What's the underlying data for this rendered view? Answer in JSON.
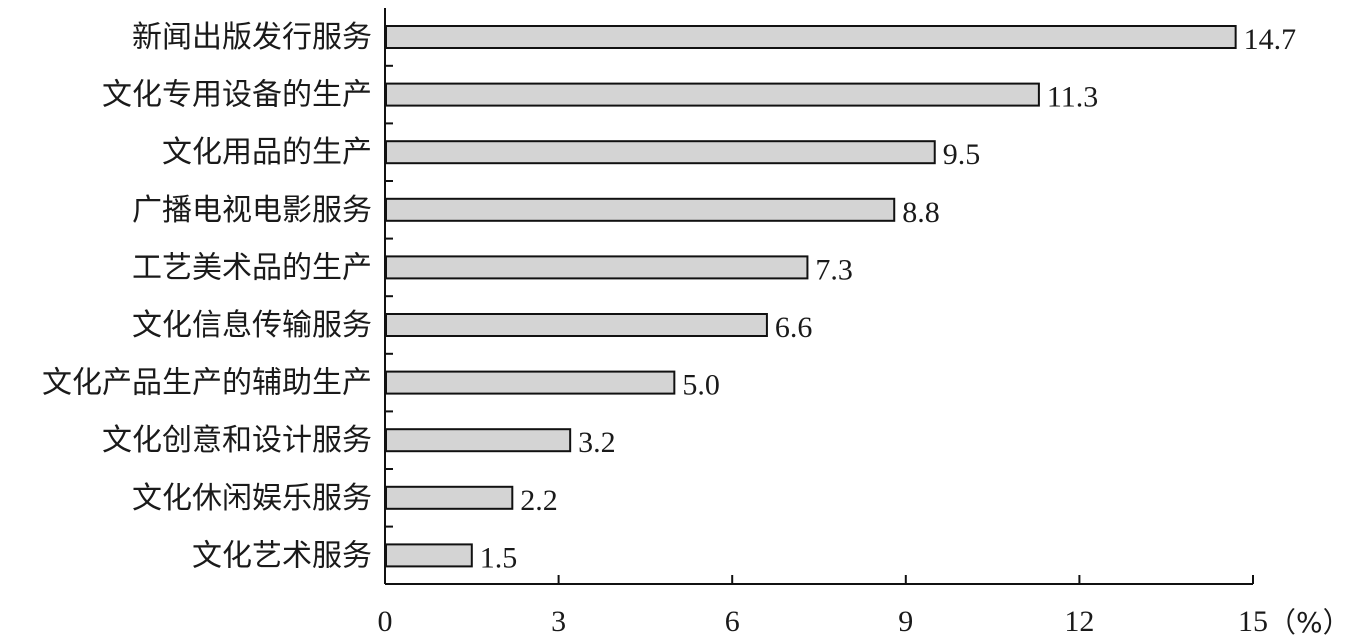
{
  "chart_data": {
    "type": "bar",
    "orientation": "horizontal",
    "categories": [
      "新闻出版发行服务",
      "文化专用设备的生产",
      "文化用品的生产",
      "广播电视电影服务",
      "工艺美术品的生产",
      "文化信息传输服务",
      "文化产品生产的辅助生产",
      "文化创意和设计服务",
      "文化休闲娱乐服务",
      "文化艺术服务"
    ],
    "values": [
      14.7,
      11.3,
      9.5,
      8.8,
      7.3,
      6.6,
      5.0,
      3.2,
      2.2,
      1.5
    ],
    "value_labels": [
      "14.7",
      "11.3",
      "9.5",
      "8.8",
      "7.3",
      "6.6",
      "5.0",
      "3.2",
      "2.2",
      "1.5"
    ],
    "xlim": [
      0,
      15
    ],
    "xticks": [
      0,
      3,
      6,
      9,
      12,
      15
    ],
    "xtick_labels": [
      "0",
      "3",
      "6",
      "9",
      "12",
      "15"
    ],
    "x_unit": "（%）",
    "grid": false,
    "bar_color": "#d4d4d4"
  }
}
